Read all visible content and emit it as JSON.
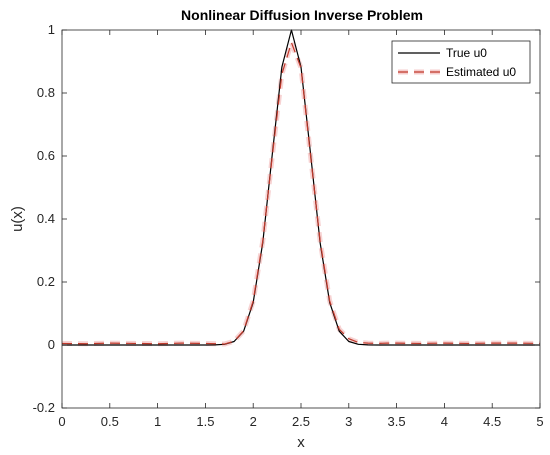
{
  "chart_data": {
    "type": "line",
    "title": "Nonlinear Diffusion Inverse Problem",
    "xlabel": "x",
    "ylabel": "u(x)",
    "xlim": [
      0,
      5
    ],
    "ylim": [
      -0.2,
      1
    ],
    "xticks": [
      0,
      0.5,
      1,
      1.5,
      2,
      2.5,
      3,
      3.5,
      4,
      4.5,
      5
    ],
    "xtick_labels": [
      "0",
      "0.5",
      "1",
      "1.5",
      "2",
      "2.5",
      "3",
      "3.5",
      "4",
      "4.5",
      "5"
    ],
    "yticks": [
      -0.2,
      0,
      0.2,
      0.4,
      0.6,
      0.8,
      1
    ],
    "ytick_labels": [
      "-0.2",
      "0",
      "0.2",
      "0.4",
      "0.6",
      "0.8",
      "1"
    ],
    "grid": false,
    "legend_position": "top-right",
    "x": [
      0,
      0.25,
      0.5,
      0.75,
      1.0,
      1.25,
      1.5,
      1.6,
      1.7,
      1.8,
      1.9,
      2.0,
      2.1,
      2.2,
      2.3,
      2.4,
      2.5,
      2.6,
      2.7,
      2.8,
      2.9,
      3.0,
      3.1,
      3.2,
      3.3,
      3.4,
      3.5,
      3.75,
      4.0,
      4.25,
      4.5,
      4.75,
      5.0
    ],
    "series": [
      {
        "name": "True u0",
        "color": "#000000",
        "style": "solid",
        "values": [
          0,
          0,
          0,
          0,
          0,
          0,
          0,
          0.0003,
          0.0022,
          0.0111,
          0.0439,
          0.1353,
          0.3247,
          0.6065,
          0.8825,
          1.0,
          0.8825,
          0.6065,
          0.3247,
          0.1353,
          0.0439,
          0.0111,
          0.0022,
          0.0003,
          0,
          0,
          0,
          0,
          0,
          0,
          0,
          0,
          0
        ]
      },
      {
        "name": "Estimated u0",
        "color": "#c0392b",
        "style": "dashed",
        "values": [
          0.005,
          0.004,
          0.006,
          0.005,
          0.004,
          0.006,
          0.005,
          0.004,
          0.003,
          0.012,
          0.045,
          0.14,
          0.33,
          0.6,
          0.86,
          0.96,
          0.88,
          0.6,
          0.33,
          0.14,
          0.05,
          0.02,
          0.008,
          0.006,
          0.005,
          0.006,
          0.006,
          0.005,
          0.006,
          0.005,
          0.006,
          0.006,
          0.005
        ]
      }
    ]
  },
  "colors": {
    "estimate_halo": "#f2b6b6",
    "axes": "#262626"
  }
}
